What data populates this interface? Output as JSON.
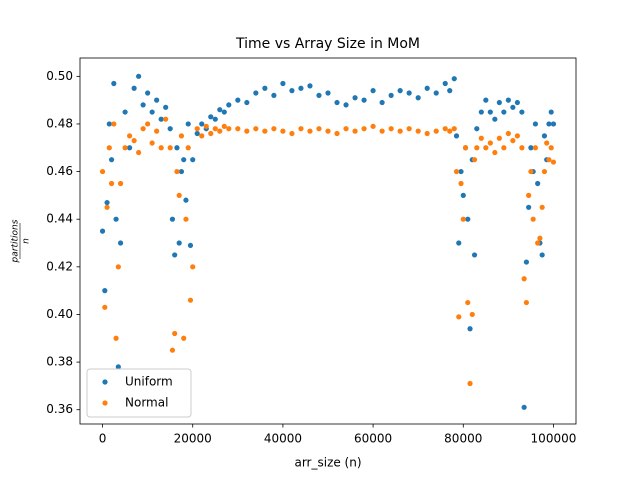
{
  "chart_data": {
    "type": "scatter",
    "title": "Time vs Array Size in MoM",
    "x_label": "arr_size (n)",
    "y_label": {
      "numerator": "partitions",
      "denominator": "n"
    },
    "legend": "lower left",
    "xlim": [
      -5000,
      105000
    ],
    "xticks": [
      0,
      20000,
      40000,
      60000,
      80000,
      100000
    ],
    "ylim": [
      0.354,
      0.5077
    ],
    "yticks": [
      0.36,
      0.38,
      {
        "value": 0.4,
        "label": "0.40"
      },
      0.42,
      0.44,
      0.46,
      0.48,
      {
        "value": 0.5,
        "label": "0.50"
      }
    ],
    "x": [
      0,
      500,
      1000,
      1500,
      2000,
      2500,
      3000,
      3500,
      4000,
      5000,
      6000,
      7000,
      8000,
      9000,
      10000,
      11000,
      12000,
      13000,
      14000,
      15000,
      15500,
      16000,
      16500,
      17000,
      17500,
      18000,
      18500,
      19000,
      19500,
      20000,
      21000,
      22000,
      23000,
      24000,
      25000,
      26000,
      27000,
      28000,
      30000,
      32000,
      34000,
      36000,
      38000,
      40000,
      42000,
      44000,
      46000,
      48000,
      50000,
      52000,
      54000,
      56000,
      58000,
      60000,
      62000,
      64000,
      66000,
      68000,
      70000,
      72000,
      74000,
      76000,
      77000,
      78000,
      78500,
      79000,
      79500,
      80000,
      80500,
      81000,
      81500,
      82000,
      82500,
      83000,
      84000,
      85000,
      86000,
      87000,
      88000,
      89000,
      90000,
      91000,
      92000,
      93000,
      93500,
      94000,
      94500,
      95000,
      95500,
      96000,
      96500,
      97000,
      97500,
      98000,
      98500,
      99000,
      99500,
      100000
    ],
    "series": [
      {
        "name": "Uniform",
        "color": "#1f77b4",
        "values": [
          0.435,
          0.41,
          0.447,
          0.48,
          0.465,
          0.497,
          0.44,
          0.378,
          0.43,
          0.485,
          0.47,
          0.495,
          0.5,
          0.488,
          0.493,
          0.485,
          0.49,
          0.482,
          0.487,
          0.478,
          0.44,
          0.425,
          0.47,
          0.43,
          0.46,
          0.465,
          0.448,
          0.48,
          0.429,
          0.465,
          0.476,
          0.48,
          0.478,
          0.483,
          0.482,
          0.486,
          0.485,
          0.488,
          0.49,
          0.489,
          0.493,
          0.495,
          0.492,
          0.497,
          0.494,
          0.495,
          0.496,
          0.492,
          0.493,
          0.489,
          0.488,
          0.491,
          0.49,
          0.494,
          0.489,
          0.492,
          0.494,
          0.493,
          0.491,
          0.495,
          0.493,
          0.497,
          0.494,
          0.499,
          0.475,
          0.43,
          0.46,
          0.45,
          0.47,
          0.44,
          0.394,
          0.465,
          0.425,
          0.478,
          0.485,
          0.49,
          0.485,
          0.482,
          0.489,
          0.485,
          0.49,
          0.487,
          0.489,
          0.485,
          0.361,
          0.422,
          0.445,
          0.47,
          0.46,
          0.48,
          0.455,
          0.43,
          0.425,
          0.475,
          0.465,
          0.48,
          0.485,
          0.48
        ]
      },
      {
        "name": "Normal",
        "color": "#ff7f0e",
        "values": [
          0.46,
          0.403,
          0.445,
          0.47,
          0.455,
          0.48,
          0.39,
          0.42,
          0.455,
          0.47,
          0.475,
          0.473,
          0.468,
          0.478,
          0.48,
          0.472,
          0.477,
          0.47,
          0.482,
          0.47,
          0.385,
          0.392,
          0.46,
          0.45,
          0.475,
          0.39,
          0.44,
          0.47,
          0.406,
          0.42,
          0.478,
          0.475,
          0.479,
          0.476,
          0.478,
          0.477,
          0.479,
          0.478,
          0.478,
          0.477,
          0.478,
          0.477,
          0.478,
          0.477,
          0.476,
          0.478,
          0.477,
          0.478,
          0.477,
          0.476,
          0.478,
          0.477,
          0.478,
          0.479,
          0.477,
          0.478,
          0.477,
          0.478,
          0.477,
          0.476,
          0.477,
          0.478,
          0.477,
          0.478,
          0.46,
          0.399,
          0.455,
          0.44,
          0.47,
          0.405,
          0.371,
          0.4,
          0.465,
          0.47,
          0.474,
          0.47,
          0.472,
          0.468,
          0.474,
          0.47,
          0.476,
          0.473,
          0.475,
          0.47,
          0.415,
          0.405,
          0.45,
          0.46,
          0.44,
          0.47,
          0.43,
          0.432,
          0.445,
          0.46,
          0.472,
          0.465,
          0.47,
          0.464
        ]
      }
    ]
  }
}
